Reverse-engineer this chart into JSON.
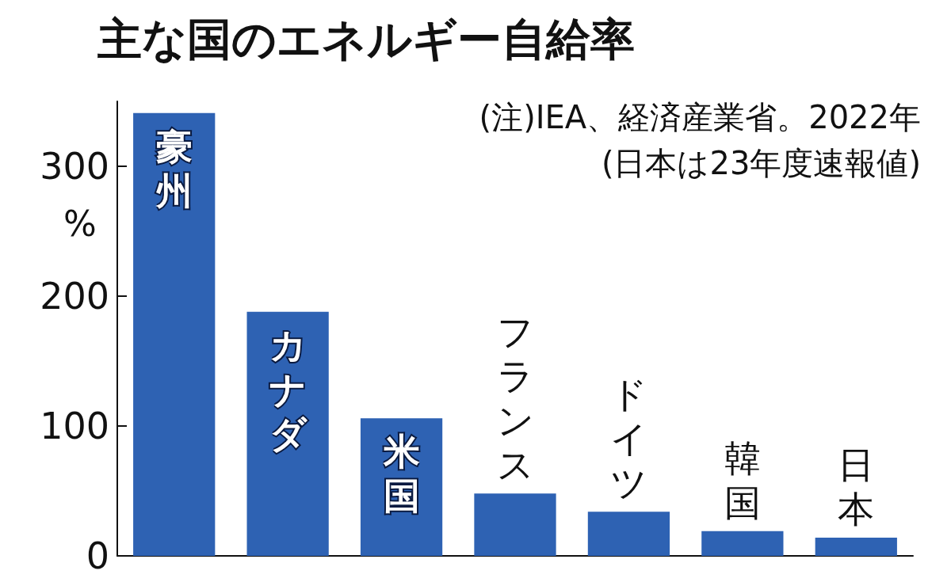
{
  "chart_data": {
    "type": "bar",
    "title": "主な国のエネルギー自給率",
    "ylabel": "%",
    "annotations": [
      "(注)IEA、経済産業省。2022年",
      "(日本は23年度速報値)"
    ],
    "categories": [
      "豪州",
      "カナダ",
      "米国",
      "フランス",
      "ドイツ",
      "韓国",
      "日本"
    ],
    "values": [
      341,
      188,
      106,
      48,
      34,
      19,
      14
    ],
    "color": "#2e62b3",
    "ylim": [
      0,
      350
    ],
    "yticks": [
      0,
      100,
      200,
      300
    ],
    "grid": false
  }
}
